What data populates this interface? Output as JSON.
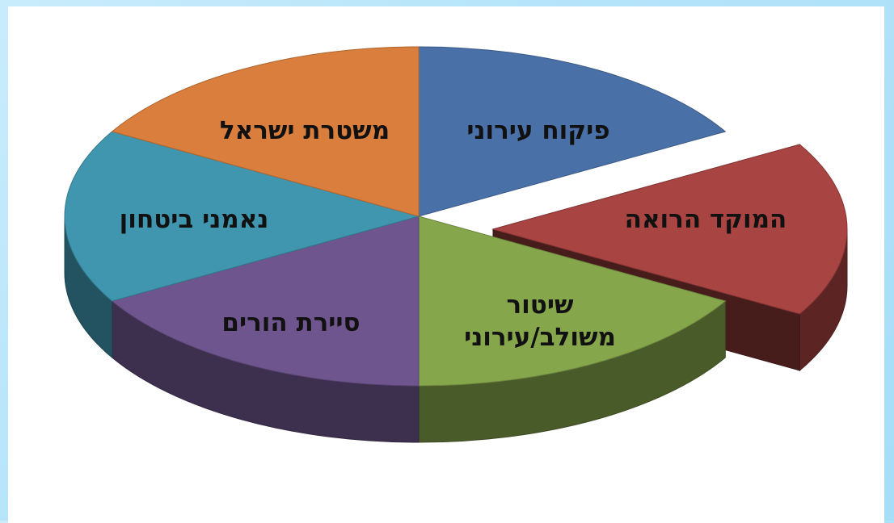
{
  "chart_data": {
    "type": "pie",
    "style": "3d-exploded",
    "title": "",
    "slices": [
      {
        "label": "פיקוח עירוני",
        "value": 1,
        "color": "#4a70a8",
        "exploded": false
      },
      {
        "label": "המוקד הרואה",
        "value": 1,
        "color": "#a84442",
        "exploded": true
      },
      {
        "label": "שיטור משולב/עירוני",
        "value": 1,
        "color": "#86a64c",
        "exploded": false
      },
      {
        "label": "סיירת הורים",
        "value": 1,
        "color": "#6f558e",
        "exploded": false
      },
      {
        "label": "נאמני ביטחון",
        "value": 1,
        "color": "#3f96ae",
        "exploded": false
      },
      {
        "label": "משטרת ישראל",
        "value": 1,
        "color": "#d97e3c",
        "exploded": false
      }
    ]
  }
}
